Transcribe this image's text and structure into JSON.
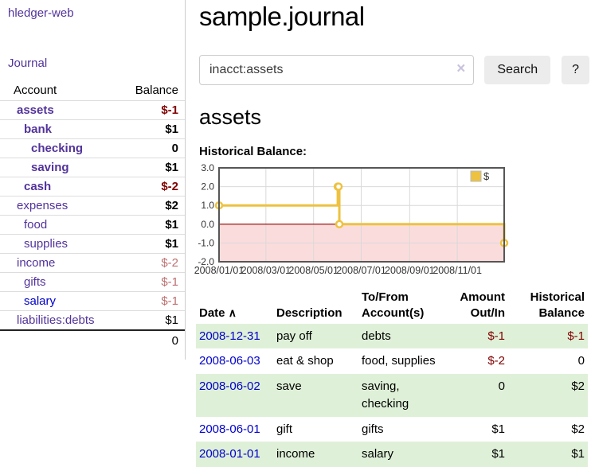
{
  "app_title": "hledger-web",
  "sidebar": {
    "nav_journal": "Journal",
    "headers": {
      "account": "Account",
      "balance": "Balance"
    },
    "accounts": [
      {
        "name": "assets",
        "balance": "$-1"
      },
      {
        "name": "bank",
        "balance": "$1"
      },
      {
        "name": "checking",
        "balance": "0"
      },
      {
        "name": "saving",
        "balance": "$1"
      },
      {
        "name": "cash",
        "balance": "$-2"
      },
      {
        "name": "expenses",
        "balance": "$2"
      },
      {
        "name": "food",
        "balance": "$1"
      },
      {
        "name": "supplies",
        "balance": "$1"
      },
      {
        "name": "income",
        "balance": "$-2"
      },
      {
        "name": "gifts",
        "balance": "$-1"
      },
      {
        "name": "salary",
        "balance": "$-1"
      },
      {
        "name": "liabilities:debts",
        "balance": "$1"
      }
    ],
    "total": "0"
  },
  "main": {
    "title": "sample.journal",
    "search": {
      "value": "inacct:assets",
      "clear_icon": "×",
      "search_button": "Search",
      "help_button": "?"
    },
    "account_heading": "assets",
    "chart_label": "Historical Balance:"
  },
  "chart_data": {
    "type": "line",
    "step": true,
    "title": "Historical Balance:",
    "series": [
      {
        "name": "$",
        "color": "#edc240",
        "points": [
          [
            "2008-01-01",
            1
          ],
          [
            "2008-06-01",
            2
          ],
          [
            "2008-06-02",
            2
          ],
          [
            "2008-06-03",
            0
          ],
          [
            "2008-12-31",
            -1
          ]
        ]
      }
    ],
    "ylim": [
      -2,
      3
    ],
    "yticks": [
      3.0,
      2.0,
      1.0,
      0.0,
      -1.0,
      -2.0
    ],
    "xrange": [
      "2008-01-01",
      "2008-12-31"
    ],
    "xticks": [
      "2008/01/01",
      "2008/03/01",
      "2008/05/01",
      "2008/07/01",
      "2008/09/01",
      "2008/11/01"
    ],
    "grid": true,
    "legend_position": "top-right",
    "negative_region_fill": true,
    "colors": {
      "negative_fill": "#fbdcdc",
      "zero_line": "#990000",
      "grid": "#d9d9d9",
      "border": "#565656"
    }
  },
  "register": {
    "columns": [
      "Date",
      "Description",
      "To/From Account(s)",
      "Amount Out/In",
      "Historical Balance"
    ],
    "sort_icon": "∧",
    "rows": [
      {
        "date": "2008-12-31",
        "description": "pay off",
        "accounts": "debts",
        "amount": "$-1",
        "balance": "$-1"
      },
      {
        "date": "2008-06-03",
        "description": "eat & shop",
        "accounts": "food, supplies",
        "amount": "$-2",
        "balance": "0"
      },
      {
        "date": "2008-06-02",
        "description": "save",
        "accounts": "saving, checking",
        "amount": "0",
        "balance": "$2"
      },
      {
        "date": "2008-06-01",
        "description": "gift",
        "accounts": "gifts",
        "amount": "$1",
        "balance": "$2"
      },
      {
        "date": "2008-01-01",
        "description": "income",
        "accounts": "salary",
        "amount": "$1",
        "balance": "$1"
      }
    ]
  },
  "colors": {
    "link_purple": "#52339b",
    "link_blue": "#0000cc",
    "negative_red": "#800000",
    "negative_soft_red": "#bd6f6f",
    "row_stripe_green": "#dff0d8",
    "chart_gold": "#edc240",
    "chart_negative_pink": "#fbdcdc",
    "chart_zero_line": "#990000"
  }
}
